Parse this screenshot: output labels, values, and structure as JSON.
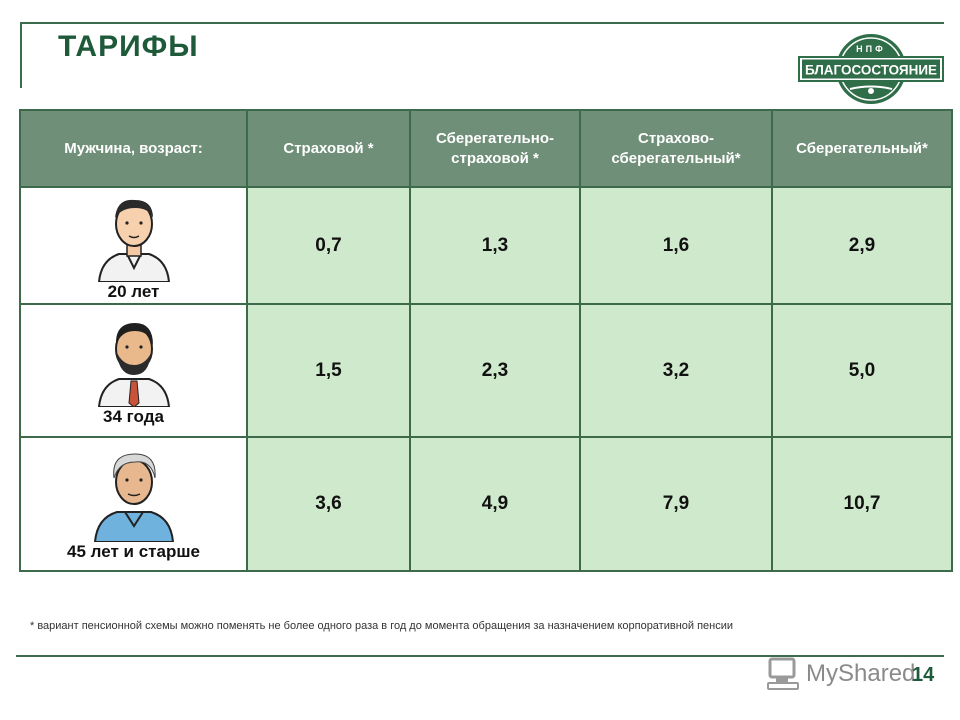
{
  "header": {
    "title": "ТАРИФЫ",
    "logo": {
      "top_text": "НПФ",
      "brand": "БЛАГОСОСТОЯНИЕ"
    }
  },
  "table": {
    "columns": [
      "Мужчина, возраст:",
      "Страховой *",
      "Сберегательно-страховой *",
      "Страхово-сберегательный*",
      "Сберегательный*"
    ],
    "rows": [
      {
        "age": "20 лет",
        "values": [
          "0,7",
          "1,3",
          "1,6",
          "2,9"
        ]
      },
      {
        "age": "34 года",
        "values": [
          "1,5",
          "2,3",
          "3,2",
          "5,0"
        ]
      },
      {
        "age": "45 лет и старше",
        "values": [
          "3,6",
          "4,9",
          "7,9",
          "10,7"
        ]
      }
    ]
  },
  "footnote": "* вариант пенсионной схемы можно поменять не более одного раза в год до момента обращения за назначением корпоративной пенсии",
  "page_number": "14",
  "watermark": "MyShared",
  "colors": {
    "brand_green": "#1e5a3a",
    "header_fill": "#6f8f78",
    "cell_fill": "#cfe9cc",
    "border": "#3e6a4c"
  }
}
